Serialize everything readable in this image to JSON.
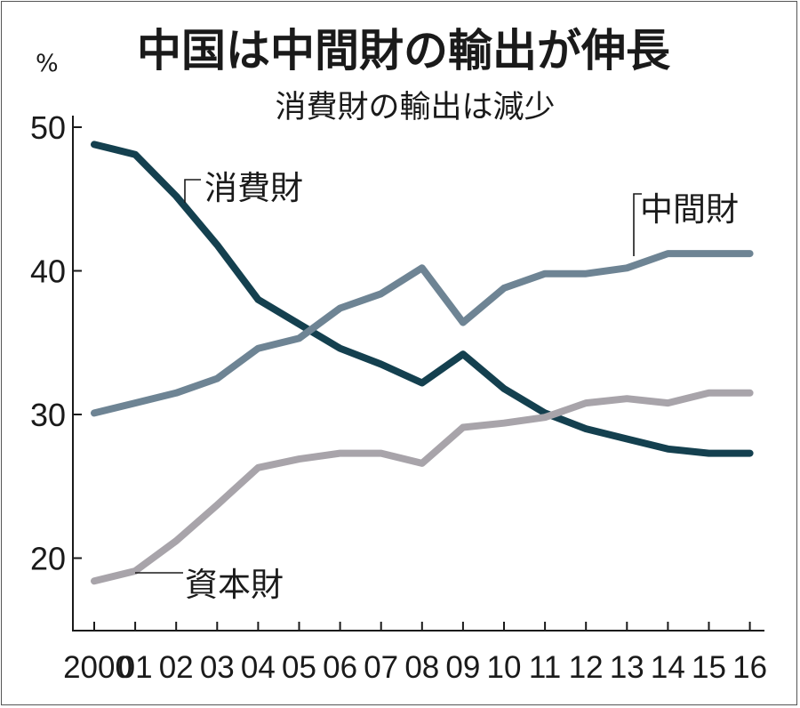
{
  "chart_data": {
    "type": "line",
    "title": "中国は中間財の輸出が伸長",
    "subtitle": "消費財の輸出は減少",
    "unit": "%",
    "x": [
      "2000",
      "01",
      "02",
      "03",
      "04",
      "05",
      "06",
      "07",
      "08",
      "09",
      "10",
      "11",
      "12",
      "13",
      "14",
      "15",
      "16"
    ],
    "ylim": [
      15,
      52
    ],
    "yticks": [
      20,
      30,
      40,
      50
    ],
    "grid": false,
    "series": [
      {
        "name": "消費財",
        "color": "#14404f",
        "values": [
          48.8,
          48.1,
          45.2,
          41.8,
          38.0,
          36.3,
          34.6,
          33.5,
          32.2,
          34.2,
          31.8,
          30.1,
          29.0,
          28.3,
          27.6,
          27.3,
          27.3
        ]
      },
      {
        "name": "中間財",
        "color": "#6e8494",
        "values": [
          30.1,
          30.8,
          31.5,
          32.5,
          34.6,
          35.3,
          37.4,
          38.4,
          40.2,
          36.4,
          38.8,
          39.8,
          39.8,
          40.2,
          41.2,
          41.2,
          41.2
        ]
      },
      {
        "name": "資本財",
        "color": "#a8a4aa",
        "values": [
          18.4,
          19.1,
          21.2,
          23.7,
          26.3,
          26.9,
          27.3,
          27.3,
          26.6,
          29.1,
          29.4,
          29.8,
          30.8,
          31.1,
          30.8,
          31.5,
          31.5
        ]
      }
    ]
  }
}
